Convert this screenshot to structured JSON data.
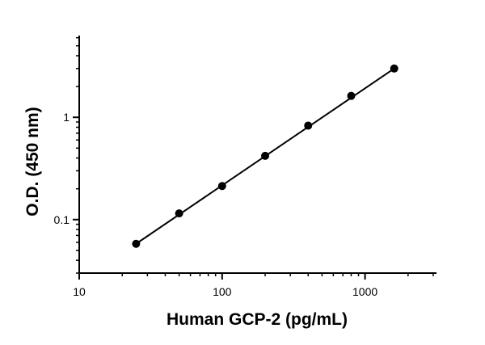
{
  "chart_data": {
    "type": "scatter",
    "title": "",
    "xlabel": "Human GCP-2 (pg/mL)",
    "ylabel": "O.D. (450 nm)",
    "xscale": "log",
    "yscale": "log",
    "xlim": [
      10,
      3162
    ],
    "ylim": [
      0.03,
      6.3
    ],
    "x_ticks": [
      {
        "value": 10,
        "label": "10"
      },
      {
        "value": 100,
        "label": "100"
      },
      {
        "value": 1000,
        "label": "1000"
      }
    ],
    "y_ticks": [
      {
        "value": 0.1,
        "label": "0.1"
      },
      {
        "value": 1,
        "label": "1"
      }
    ],
    "grid": false,
    "legend": "none",
    "series": [
      {
        "x": [
          25,
          50,
          100,
          200,
          400,
          800,
          1600
        ],
        "y": [
          0.058,
          0.115,
          0.213,
          0.42,
          0.83,
          1.62,
          3.0
        ],
        "marker": "circle",
        "fit_line": true,
        "color": "#000000"
      }
    ]
  }
}
